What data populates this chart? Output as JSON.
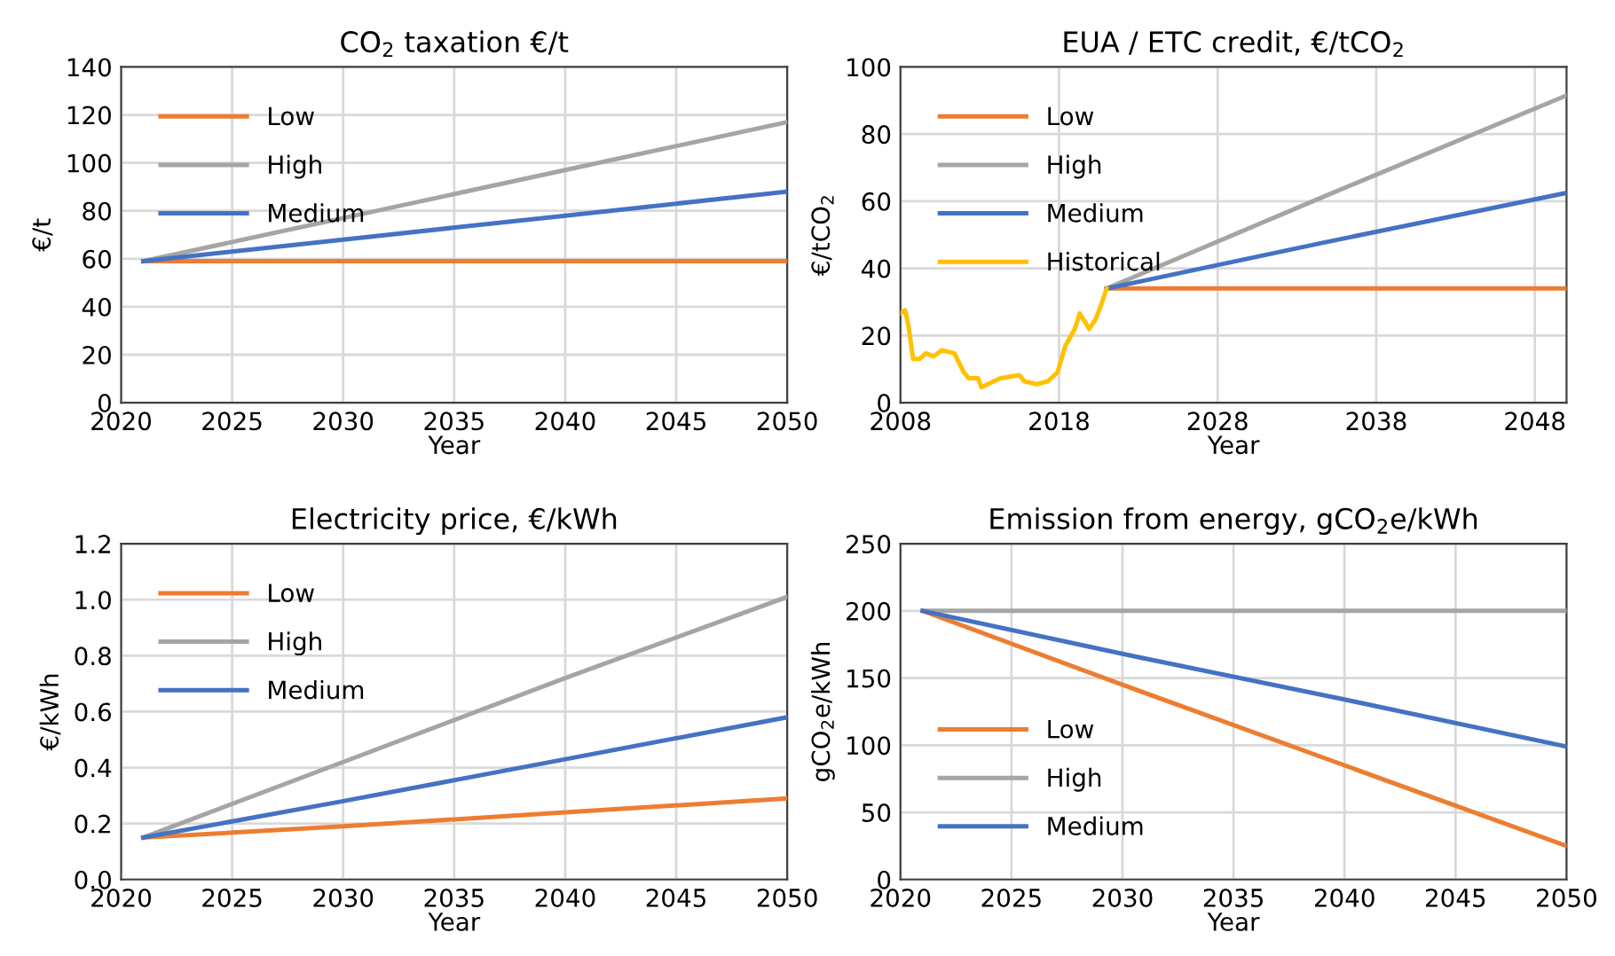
{
  "chart_data": [
    {
      "type": "line",
      "title": "CO$_{2}$ taxation €/t",
      "xlabel": "Year",
      "ylabel": "€/t",
      "xlim": [
        2020,
        2050
      ],
      "xticks": [
        2020,
        2025,
        2030,
        2035,
        2040,
        2045,
        2050
      ],
      "ylim": [
        0,
        140
      ],
      "yticks": [
        0,
        20,
        40,
        60,
        80,
        100,
        120,
        140
      ],
      "grid": true,
      "legend": "top left",
      "series": [
        {
          "name": "Low",
          "color": "#ed7d31",
          "x": [
            2021,
            2050
          ],
          "values": [
            59,
            59
          ]
        },
        {
          "name": "High",
          "color": "#a5a5a5",
          "x": [
            2021,
            2030,
            2040,
            2050
          ],
          "values": [
            59,
            77,
            97,
            117
          ]
        },
        {
          "name": "Medium",
          "color": "#4472c4",
          "x": [
            2021,
            2030,
            2040,
            2050
          ],
          "values": [
            59,
            68,
            78,
            88
          ]
        }
      ]
    },
    {
      "type": "line",
      "title": "EUA / ETC credit, €/tCO$_{2}$",
      "xlabel": "Year",
      "ylabel": "€/tCO$_{2}$",
      "xlim": [
        2008,
        2050
      ],
      "xticks": [
        2008,
        2018,
        2028,
        2038,
        2048
      ],
      "ylim": [
        0,
        100
      ],
      "yticks": [
        0,
        20,
        40,
        60,
        80,
        100
      ],
      "grid": true,
      "legend": "top left",
      "series": [
        {
          "name": "Low",
          "color": "#ed7d31",
          "x": [
            2021,
            2050
          ],
          "values": [
            34,
            34
          ]
        },
        {
          "name": "High",
          "color": "#a5a5a5",
          "x": [
            2021,
            2035,
            2050
          ],
          "values": [
            34,
            62,
            91.5
          ]
        },
        {
          "name": "Medium",
          "color": "#4472c4",
          "x": [
            2021,
            2035,
            2050
          ],
          "values": [
            34,
            48,
            62.5
          ]
        },
        {
          "name": "Historical",
          "color": "#ffc000",
          "x": [
            2008.0,
            2008.3,
            2008.5,
            2008.8,
            2009.2,
            2009.6,
            2010.1,
            2010.6,
            2011.4,
            2012.0,
            2012.3,
            2012.9,
            2013.1,
            2013.5,
            2014.3,
            2015.5,
            2015.8,
            2016.6,
            2017.3,
            2017.9,
            2018.4,
            2019.0,
            2019.3,
            2019.9,
            2020.3,
            2020.6,
            2021.0
          ],
          "values": [
            26.6,
            27.5,
            23,
            13,
            13,
            14.7,
            13.8,
            15.6,
            14.7,
            9,
            7.3,
            7.3,
            4.6,
            5.5,
            7.3,
            8.2,
            6.4,
            5.5,
            6.4,
            9,
            17,
            22,
            26.6,
            22,
            24.8,
            28.4,
            34
          ]
        }
      ]
    },
    {
      "type": "line",
      "title": "Electricity price, €/kWh",
      "xlabel": "Year",
      "ylabel": "€/kWh",
      "xlim": [
        2020,
        2050
      ],
      "xticks": [
        2020,
        2025,
        2030,
        2035,
        2040,
        2045,
        2050
      ],
      "ylim": [
        0,
        1.2
      ],
      "yticks": [
        {
          "value": 0,
          "label": "0.0"
        },
        0.2,
        0.4,
        0.6,
        0.8,
        {
          "value": 1,
          "label": "1.0"
        },
        1.2
      ],
      "grid": true,
      "legend": "top left",
      "series": [
        {
          "name": "Low",
          "color": "#ed7d31",
          "x": [
            2021,
            2030,
            2040,
            2050
          ],
          "values": [
            0.15,
            0.19,
            0.24,
            0.29
          ]
        },
        {
          "name": "High",
          "color": "#a5a5a5",
          "x": [
            2021,
            2030,
            2040,
            2050
          ],
          "values": [
            0.15,
            0.42,
            0.72,
            1.01
          ]
        },
        {
          "name": "Medium",
          "color": "#4472c4",
          "x": [
            2021,
            2030,
            2040,
            2050
          ],
          "values": [
            0.15,
            0.28,
            0.43,
            0.58
          ]
        }
      ]
    },
    {
      "type": "line",
      "title": "Emission from energy, gCO$_{2}$e/kWh",
      "xlabel": "Year",
      "ylabel": "gCO$_{2}$e/kWh",
      "xlim": [
        2020,
        2050
      ],
      "xticks": [
        2020,
        2025,
        2030,
        2035,
        2040,
        2045,
        2050
      ],
      "ylim": [
        0,
        250
      ],
      "yticks": [
        0,
        50,
        100,
        150,
        200,
        250
      ],
      "grid": true,
      "legend": "bottom left",
      "series": [
        {
          "name": "Low",
          "color": "#ed7d31",
          "x": [
            2021,
            2030,
            2040,
            2050
          ],
          "values": [
            200,
            145,
            85,
            25
          ]
        },
        {
          "name": "High",
          "color": "#a5a5a5",
          "x": [
            2021,
            2050
          ],
          "values": [
            200,
            200
          ]
        },
        {
          "name": "Medium",
          "color": "#4472c4",
          "x": [
            2021,
            2030,
            2040,
            2050
          ],
          "values": [
            200,
            168,
            134,
            99
          ]
        }
      ]
    }
  ]
}
